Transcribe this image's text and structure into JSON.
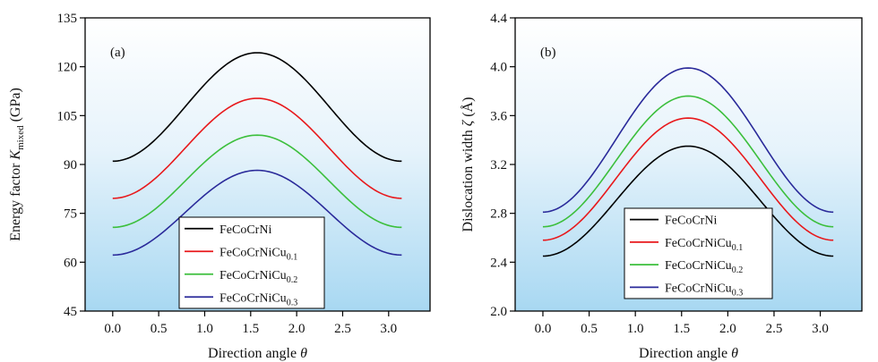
{
  "chart_data": [
    {
      "type": "line",
      "panel_label": "(a)",
      "xlabel": "Direction angle θ",
      "ylabel": "Energy factor K_mixed (GPa)",
      "ylabel_parts": {
        "main": "Energy factor ",
        "symbol": "K",
        "subscript": "mixed",
        "unit": " (GPa)"
      },
      "xlim": [
        -0.3,
        3.45
      ],
      "ylim": [
        45,
        135
      ],
      "x_ticks": [
        0.0,
        0.5,
        1.0,
        1.5,
        2.0,
        2.5,
        3.0
      ],
      "x_tick_labels": [
        "0.0",
        "0.5",
        "1.0",
        "1.5",
        "2.0",
        "2.5",
        "3.0"
      ],
      "y_ticks": [
        45,
        60,
        75,
        90,
        105,
        120,
        135
      ],
      "y_tick_labels": [
        "45",
        "60",
        "75",
        "90",
        "105",
        "120",
        "135"
      ],
      "legend_position": "lower-center",
      "background": "vertical gradient light blue (bottom) to white (top)",
      "model": "y = min + (max - min) * sin²(θ)",
      "x_range": [
        0,
        3.1416
      ],
      "series": [
        {
          "name": "FeCoCrNi",
          "base": "FeCoCrNi",
          "sub": "",
          "color": "#000000",
          "min": 91.0,
          "max": 124.3
        },
        {
          "name": "FeCoCrNiCu0.1",
          "base": "FeCoCrNiCu",
          "sub": "0.1",
          "color": "#e8191c",
          "min": 79.6,
          "max": 110.3
        },
        {
          "name": "FeCoCrNiCu0.2",
          "base": "FeCoCrNiCu",
          "sub": "0.2",
          "color": "#3cbf3c",
          "min": 70.7,
          "max": 99.0
        },
        {
          "name": "FeCoCrNiCu0.3",
          "base": "FeCoCrNiCu",
          "sub": "0.3",
          "color": "#2a2a9a",
          "min": 62.2,
          "max": 88.2
        }
      ]
    },
    {
      "type": "line",
      "panel_label": "(b)",
      "xlabel": "Direction angle θ",
      "ylabel": "Dislocation width ζ (Å)",
      "ylabel_parts": {
        "main": "Dislocation width ",
        "symbol": "ζ",
        "subscript": "",
        "unit": " (Å)"
      },
      "xlim": [
        -0.3,
        3.45
      ],
      "ylim": [
        2.0,
        4.4
      ],
      "x_ticks": [
        0.0,
        0.5,
        1.0,
        1.5,
        2.0,
        2.5,
        3.0
      ],
      "x_tick_labels": [
        "0.0",
        "0.5",
        "1.0",
        "1.5",
        "2.0",
        "2.5",
        "3.0"
      ],
      "y_ticks": [
        2.0,
        2.4,
        2.8,
        3.2,
        3.6,
        4.0,
        4.4
      ],
      "y_tick_labels": [
        "2.0",
        "2.4",
        "2.8",
        "3.2",
        "3.6",
        "4.0",
        "4.4"
      ],
      "legend_position": "lower-left",
      "background": "vertical gradient light blue (bottom) to white (top)",
      "model": "y = min + (max - min) * sin²(θ)",
      "x_range": [
        0,
        3.1416
      ],
      "series": [
        {
          "name": "FeCoCrNi",
          "base": "FeCoCrNi",
          "sub": "",
          "color": "#000000",
          "min": 2.45,
          "max": 3.35
        },
        {
          "name": "FeCoCrNiCu0.1",
          "base": "FeCoCrNiCu",
          "sub": "0.1",
          "color": "#e8191c",
          "min": 2.58,
          "max": 3.58
        },
        {
          "name": "FeCoCrNiCu0.2",
          "base": "FeCoCrNiCu",
          "sub": "0.2",
          "color": "#3cbf3c",
          "min": 2.69,
          "max": 3.76
        },
        {
          "name": "FeCoCrNiCu0.3",
          "base": "FeCoCrNiCu",
          "sub": "0.3",
          "color": "#2a2a9a",
          "min": 2.81,
          "max": 3.99
        }
      ]
    }
  ]
}
